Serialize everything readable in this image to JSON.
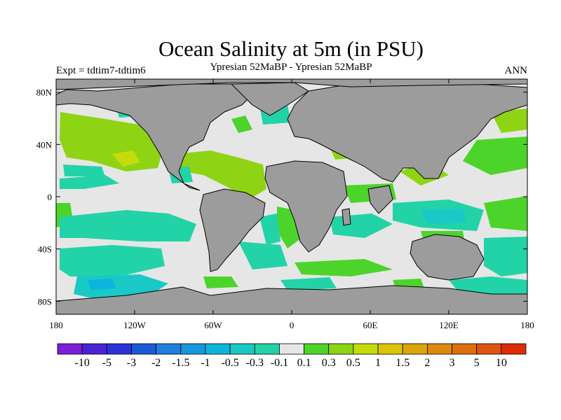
{
  "title": "Ocean Salinity at 5m (in PSU)",
  "subtitle": "Ypresian  52MaBP - Ypresian  52MaBP",
  "left_label": "Expt = tdtim7-tdtim6",
  "right_label": "ANN",
  "map": {
    "projection": "equirectangular",
    "lon_range": [
      -180,
      180
    ],
    "lat_range": [
      -90,
      90
    ],
    "land_color": "#9c9c9c",
    "near_zero_color": "#e6e6e6",
    "lat_ticks": [
      {
        "value": 80,
        "label": "80N"
      },
      {
        "value": 40,
        "label": "40N"
      },
      {
        "value": 0,
        "label": "0"
      },
      {
        "value": -40,
        "label": "40S"
      },
      {
        "value": -80,
        "label": "80S"
      }
    ],
    "lon_ticks": [
      {
        "value": -180,
        "label": "180"
      },
      {
        "value": -120,
        "label": "120W"
      },
      {
        "value": -60,
        "label": "60W"
      },
      {
        "value": 0,
        "label": "0"
      },
      {
        "value": 60,
        "label": "60E"
      },
      {
        "value": 120,
        "label": "120E"
      },
      {
        "value": 180,
        "label": "180"
      }
    ]
  },
  "colorbar": {
    "labels": [
      "-10",
      "-5",
      "-3",
      "-2",
      "-1.5",
      "-1",
      "-0.5",
      "-0.3",
      "-0.1",
      "0.1",
      "0.3",
      "0.5",
      "1",
      "1.5",
      "2",
      "3",
      "5",
      "10"
    ],
    "colors": [
      "#7a1fd8",
      "#4a22d4",
      "#2a33d6",
      "#1a5ad8",
      "#1f7ede",
      "#1698dc",
      "#0cb5dc",
      "#19c9c5",
      "#22d3a8",
      "#e6e6e6",
      "#4cd42a",
      "#8ed414",
      "#c6dc0a",
      "#dcc40a",
      "#dca50a",
      "#dc8a0c",
      "#dc700d",
      "#dc5410",
      "#dc2c08"
    ]
  }
}
